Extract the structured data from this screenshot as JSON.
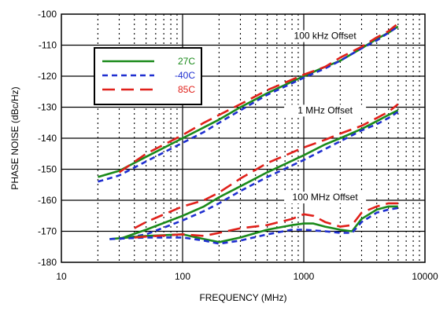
{
  "chart_data": {
    "type": "line",
    "title": "",
    "xlabel": "FREQUENCY (MHz)",
    "ylabel": "PHASE NOISE (dBc/Hz)",
    "x_scale": "log",
    "xlim": [
      10,
      10000
    ],
    "ylim": [
      -180,
      -100
    ],
    "x_ticks": [
      10,
      100,
      1000,
      10000
    ],
    "x_tick_labels": [
      "10",
      "100",
      "1000",
      "10000"
    ],
    "y_ticks": [
      -100,
      -110,
      -120,
      -130,
      -140,
      -150,
      -160,
      -170,
      -180
    ],
    "y_tick_labels": [
      "-100",
      "-110",
      "-120",
      "-130",
      "-140",
      "-150",
      "-160",
      "-170",
      "-180"
    ],
    "grid": true,
    "legend_position": "top-left",
    "annotations": [
      {
        "text": "100 kHz Offset",
        "x": 1500,
        "y": -108
      },
      {
        "text": "1 MHz Offset",
        "x": 1500,
        "y": -132
      },
      {
        "text": "100 MHz Offset",
        "x": 1500,
        "y": -160
      }
    ],
    "series": [
      {
        "name": "27C",
        "color": "#1a8a1a",
        "dash": "solid",
        "group": "100 kHz Offset",
        "points": [
          [
            20,
            -152.5
          ],
          [
            30,
            -150.5
          ],
          [
            50,
            -146
          ],
          [
            100,
            -140
          ],
          [
            150,
            -136.5
          ],
          [
            200,
            -134
          ],
          [
            300,
            -130
          ],
          [
            500,
            -125.5
          ],
          [
            1000,
            -120
          ],
          [
            1500,
            -117
          ],
          [
            2000,
            -115
          ],
          [
            3000,
            -111
          ],
          [
            4000,
            -108
          ],
          [
            5000,
            -106
          ],
          [
            6000,
            -104
          ]
        ]
      },
      {
        "name": "-40C",
        "color": "#1f2fd0",
        "dash": "short",
        "group": "100 kHz Offset",
        "points": [
          [
            20,
            -154
          ],
          [
            30,
            -152
          ],
          [
            50,
            -147.5
          ],
          [
            100,
            -141.5
          ],
          [
            150,
            -138
          ],
          [
            200,
            -135
          ],
          [
            300,
            -131
          ],
          [
            500,
            -126
          ],
          [
            1000,
            -120.5
          ],
          [
            1500,
            -117.5
          ],
          [
            2000,
            -115
          ],
          [
            3000,
            -111
          ],
          [
            4000,
            -108.5
          ],
          [
            5000,
            -106
          ],
          [
            6000,
            -104
          ]
        ]
      },
      {
        "name": "85C",
        "color": "#e0201a",
        "dash": "long",
        "group": "100 kHz Offset",
        "points": [
          [
            30,
            -151
          ],
          [
            50,
            -145
          ],
          [
            100,
            -139
          ],
          [
            150,
            -135
          ],
          [
            200,
            -132.5
          ],
          [
            300,
            -129
          ],
          [
            500,
            -124.5
          ],
          [
            1000,
            -119.5
          ],
          [
            1500,
            -117
          ],
          [
            2000,
            -114
          ],
          [
            3000,
            -110.5
          ],
          [
            4000,
            -107.5
          ],
          [
            5000,
            -105.5
          ],
          [
            6000,
            -103
          ]
        ]
      },
      {
        "name": "27C",
        "color": "#1a8a1a",
        "dash": "solid",
        "group": "1 MHz Offset",
        "points": [
          [
            30,
            -172.5
          ],
          [
            50,
            -169.5
          ],
          [
            100,
            -165
          ],
          [
            150,
            -162
          ],
          [
            200,
            -159
          ],
          [
            300,
            -155.5
          ],
          [
            500,
            -151
          ],
          [
            1000,
            -145.5
          ],
          [
            1500,
            -142
          ],
          [
            2000,
            -140
          ],
          [
            3000,
            -137
          ],
          [
            4000,
            -134.5
          ],
          [
            5000,
            -132.5
          ],
          [
            6000,
            -131
          ]
        ]
      },
      {
        "name": "-40C",
        "color": "#1f2fd0",
        "dash": "short",
        "group": "1 MHz Offset",
        "points": [
          [
            30,
            -172.5
          ],
          [
            50,
            -171
          ],
          [
            100,
            -166.5
          ],
          [
            150,
            -163.5
          ],
          [
            200,
            -161
          ],
          [
            300,
            -157
          ],
          [
            500,
            -152.5
          ],
          [
            1000,
            -147
          ],
          [
            1500,
            -143.5
          ],
          [
            2000,
            -141
          ],
          [
            3000,
            -137.5
          ],
          [
            4000,
            -135.5
          ],
          [
            5000,
            -133.5
          ],
          [
            6000,
            -131.5
          ]
        ]
      },
      {
        "name": "85C",
        "color": "#e0201a",
        "dash": "long",
        "group": "1 MHz Offset",
        "points": [
          [
            40,
            -169
          ],
          [
            50,
            -167
          ],
          [
            100,
            -162
          ],
          [
            150,
            -160
          ],
          [
            200,
            -157.5
          ],
          [
            300,
            -153
          ],
          [
            500,
            -148
          ],
          [
            1000,
            -143
          ],
          [
            1500,
            -140.5
          ],
          [
            2000,
            -138.5
          ],
          [
            3000,
            -136
          ],
          [
            4000,
            -133.5
          ],
          [
            5000,
            -131.5
          ],
          [
            6000,
            -129
          ]
        ]
      },
      {
        "name": "27C",
        "color": "#1a8a1a",
        "dash": "solid",
        "group": "100 MHz Offset",
        "points": [
          [
            25,
            -172.5
          ],
          [
            50,
            -171.5
          ],
          [
            100,
            -171
          ],
          [
            150,
            -172.5
          ],
          [
            200,
            -173.5
          ],
          [
            300,
            -172
          ],
          [
            500,
            -169.5
          ],
          [
            800,
            -168
          ],
          [
            1000,
            -167.5
          ],
          [
            1200,
            -167.5
          ],
          [
            1500,
            -168.5
          ],
          [
            2000,
            -169.5
          ],
          [
            2500,
            -170
          ],
          [
            3000,
            -166
          ],
          [
            4000,
            -163
          ],
          [
            5000,
            -162
          ],
          [
            6000,
            -162
          ]
        ]
      },
      {
        "name": "-40C",
        "color": "#1f2fd0",
        "dash": "short",
        "group": "100 MHz Offset",
        "points": [
          [
            25,
            -172.5
          ],
          [
            50,
            -172
          ],
          [
            100,
            -172
          ],
          [
            150,
            -173
          ],
          [
            200,
            -174
          ],
          [
            300,
            -173
          ],
          [
            500,
            -171
          ],
          [
            800,
            -169.5
          ],
          [
            1000,
            -169.5
          ],
          [
            1500,
            -170
          ],
          [
            2000,
            -170.5
          ],
          [
            2500,
            -170.5
          ],
          [
            3000,
            -167
          ],
          [
            4000,
            -164
          ],
          [
            5000,
            -163
          ],
          [
            6000,
            -162.5
          ]
        ]
      },
      {
        "name": "85C",
        "color": "#e0201a",
        "dash": "long",
        "group": "100 MHz Offset",
        "points": [
          [
            40,
            -172
          ],
          [
            60,
            -171.5
          ],
          [
            100,
            -171
          ],
          [
            150,
            -171.5
          ],
          [
            200,
            -170.5
          ],
          [
            300,
            -169
          ],
          [
            500,
            -168
          ],
          [
            800,
            -166
          ],
          [
            1000,
            -164.5
          ],
          [
            1200,
            -165
          ],
          [
            1500,
            -167
          ],
          [
            2000,
            -168.5
          ],
          [
            2500,
            -168
          ],
          [
            3000,
            -164
          ],
          [
            4000,
            -162
          ],
          [
            5000,
            -161
          ],
          [
            6000,
            -161
          ]
        ]
      }
    ],
    "legend": [
      {
        "name": "27C",
        "color": "#1a8a1a",
        "dash": "solid"
      },
      {
        "name": "-40C",
        "color": "#1f2fd0",
        "dash": "short"
      },
      {
        "name": "85C",
        "color": "#e0201a",
        "dash": "long"
      }
    ]
  }
}
